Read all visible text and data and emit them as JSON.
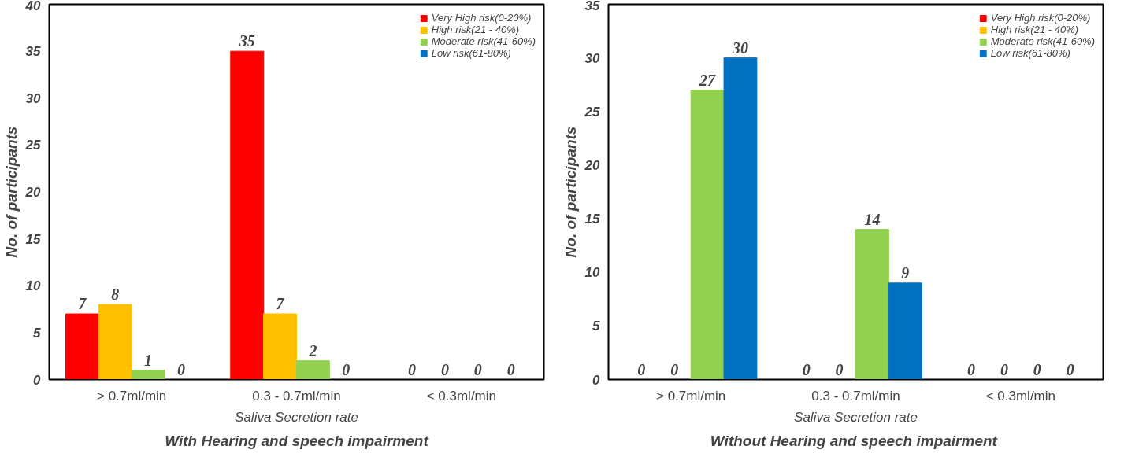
{
  "chart_data": [
    {
      "type": "bar",
      "title": "With Hearing and speech impairment",
      "xlabel": "Saliva Secretion rate",
      "ylabel": "No. of participants",
      "categories": [
        "> 0.7ml/min",
        "0.3 - 0.7ml/min",
        "< 0.3ml/min"
      ],
      "series": [
        {
          "name": "Very High risk(0-20%)",
          "color": "#ff0000",
          "values": [
            7,
            35,
            0
          ]
        },
        {
          "name": "High risk(21 - 40%)",
          "color": "#ffc000",
          "values": [
            8,
            7,
            0
          ]
        },
        {
          "name": "Moderate risk(41-60%)",
          "color": "#92d050",
          "values": [
            1,
            2,
            0
          ]
        },
        {
          "name": "Low risk(61-80%)",
          "color": "#0070c0",
          "values": [
            0,
            0,
            0
          ]
        }
      ],
      "ylim": [
        0,
        40
      ],
      "yticks": [
        0,
        5,
        10,
        15,
        20,
        25,
        30,
        35,
        40
      ],
      "data_labels": true,
      "legend": "top right"
    },
    {
      "type": "bar",
      "title": "Without  Hearing and speech impairment",
      "xlabel": "Saliva Secretion rate",
      "ylabel": "No. of participants",
      "categories": [
        "> 0.7ml/min",
        "0.3 - 0.7ml/min",
        "< 0.3ml/min"
      ],
      "series": [
        {
          "name": "Very High risk(0-20%)",
          "color": "#ff0000",
          "values": [
            0,
            0,
            0
          ]
        },
        {
          "name": "High risk(21 - 40%)",
          "color": "#ffc000",
          "values": [
            0,
            0,
            0
          ]
        },
        {
          "name": "Moderate risk(41-60%)",
          "color": "#92d050",
          "values": [
            27,
            14,
            0
          ]
        },
        {
          "name": "Low risk(61-80%)",
          "color": "#0070c0",
          "values": [
            30,
            9,
            0
          ]
        }
      ],
      "ylim": [
        0,
        35
      ],
      "yticks": [
        0,
        5,
        10,
        15,
        20,
        25,
        30,
        35
      ],
      "data_labels": true,
      "legend": "top right"
    }
  ]
}
